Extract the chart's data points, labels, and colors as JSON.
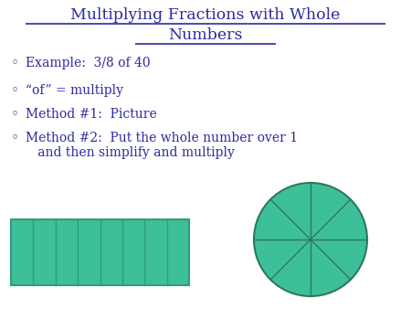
{
  "title_line1": "Multiplying Fractions with Whole",
  "title_line2": "Numbers",
  "title_color": "#2b2b9f",
  "title_fontsize": 12.5,
  "bg_color": "#ffffff",
  "bullet_color": "#2b2b9f",
  "bullet_fontsize": 10,
  "bullets": [
    "Example:  3/8 of 40",
    "“of” = multiply",
    "Method #1:  Picture",
    "Method #2:  Put the whole number over 1\n   and then simplify and multiply"
  ],
  "rect_color": "#3dbf9a",
  "rect_edge_color": "#2d9e7e",
  "num_divisions": 8,
  "circle_color": "#3dbf9a",
  "circle_edge_color": "#2d7a5a"
}
